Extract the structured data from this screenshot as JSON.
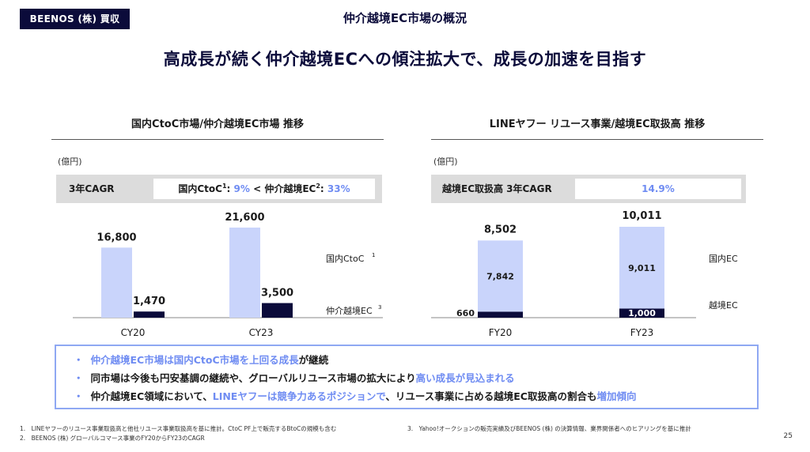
{
  "header": {
    "brand": "BEENOS (株) 買収",
    "section_title": "仲介越境EC市場の概況",
    "headline": "高成長が続く仲介越境ECへの傾注拡大で、成長の加速を目指す"
  },
  "left_panel": {
    "title": "国内CtoC市場/仲介越境EC市場 推移",
    "unit": "(億円)",
    "cagr_label": "3年CAGR",
    "cagr_part1": "国内CtoC",
    "cagr_sup1": "1",
    "cagr_val1": "9%",
    "cagr_sep": " < ",
    "cagr_part2": "仲介越境EC",
    "cagr_sup2": "2",
    "cagr_val2": "33%"
  },
  "right_panel": {
    "title": "LINEヤフー リユース事業/越境EC取扱高 推移",
    "unit": "(億円)",
    "cagr_label": "越境EC取扱高 3年CAGR",
    "cagr_value": "14.9%"
  },
  "chart_data": [
    {
      "type": "bar",
      "categories": [
        "CY20",
        "CY23"
      ],
      "series": [
        {
          "name": "国内CtoC",
          "name_sup": "1",
          "values": [
            16800,
            21600
          ],
          "color": "#c9d4fb"
        },
        {
          "name": "仲介越境EC",
          "name_sup": "3",
          "values": [
            1470,
            3500
          ],
          "color": "#0b0b3a"
        }
      ],
      "labels": [
        [
          "16,800",
          "21,600"
        ],
        [
          "1,470",
          "3,500"
        ]
      ],
      "layout": "grouped",
      "ylim": [
        0,
        21600
      ]
    },
    {
      "type": "bar",
      "categories": [
        "FY20",
        "FY23"
      ],
      "series": [
        {
          "name": "越境EC",
          "values": [
            660,
            1000
          ],
          "color": "#0b0b3a"
        },
        {
          "name": "国内EC",
          "values": [
            7842,
            9011
          ],
          "color": "#c9d4fb"
        }
      ],
      "labels": [
        [
          "660",
          "1,000"
        ],
        [
          "7,842",
          "9,011"
        ]
      ],
      "totals": [
        "8,502",
        "10,011"
      ],
      "layout": "stacked",
      "ylim": [
        0,
        10011
      ]
    }
  ],
  "bullets": [
    [
      {
        "t": "仲介越境EC市場は国内CtoC市場を上回る成長",
        "a": true
      },
      {
        "t": "が継続",
        "a": false
      }
    ],
    [
      {
        "t": "同市場は今後も円安基調の継続や、グローバルリユース市場の拡大により",
        "a": false
      },
      {
        "t": "高い成長が見込まれる",
        "a": true
      }
    ],
    [
      {
        "t": "仲介越境EC領域において、",
        "a": false
      },
      {
        "t": "LINEヤフーは競争力あるポジションで",
        "a": true
      },
      {
        "t": "、リユース事業に占める越境EC取扱高の割合も",
        "a": false
      },
      {
        "t": "増加傾向",
        "a": true
      }
    ]
  ],
  "footnotes": {
    "f1": "1.　LINEヤフーのリユース事業取扱高と他社リユース事業取扱高を基に推計。CtoC PF上で販売するBtoCの規模も含む",
    "f2": "2.　BEENOS (株) グローバルコマース事業のFY20からFY23のCAGR",
    "f3": "3.　Yahoo!オークションの販売実績及びBEENOS (株) の決算情報、業界関係者へのヒアリングを基に推計",
    "page": "25"
  },
  "colors": {
    "navy": "#0b0b3a",
    "light_bar": "#c9d4fb",
    "accent": "#6f8cf2"
  }
}
